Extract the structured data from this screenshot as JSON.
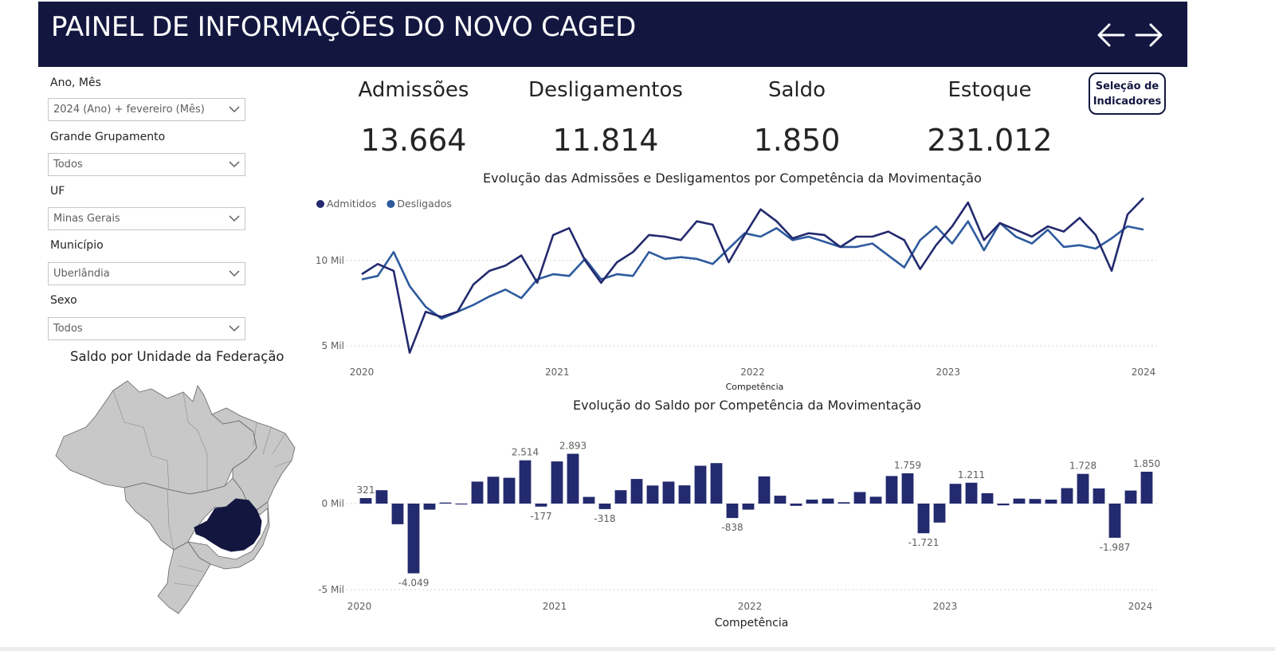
{
  "header": {
    "title": "PAINEL DE INFORMAÇÕES DO NOVO CAGED",
    "back_icon": "arrow-left-icon",
    "forward_icon": "arrow-right-icon",
    "background": "#131740"
  },
  "filters": [
    {
      "label": "Ano, Mês",
      "value": "2024 (Ano) + fevereiro (Mês)"
    },
    {
      "label": "Grande Grupamento",
      "value": "Todos"
    },
    {
      "label": "UF",
      "value": "Minas Gerais"
    },
    {
      "label": "Município",
      "value": "Uberlândia"
    },
    {
      "label": "Sexo",
      "value": "Todos"
    }
  ],
  "kpis": [
    {
      "title": "Admissões",
      "value": "13.664"
    },
    {
      "title": "Desligamentos",
      "value": "11.814"
    },
    {
      "title": "Saldo",
      "value": "1.850"
    },
    {
      "title": "Estoque",
      "value": "231.012"
    }
  ],
  "indicator_button": {
    "line1": "Seleção de",
    "line2": "Indicadores"
  },
  "map": {
    "title": "Saldo por Unidade da Federação",
    "highlighted_state": "Minas Gerais",
    "highlight_color": "#131740",
    "base_color": "#c8c8c8"
  },
  "chart_data": [
    {
      "type": "line",
      "title": "Evolução das Admissões e Desligamentos por Competência da Movimentação",
      "xlabel": "Competência",
      "ylabel": "",
      "x_ticks": [
        "2020",
        "2021",
        "2022",
        "2023",
        "2024"
      ],
      "y_ticks": [
        {
          "value": 5000,
          "label": "5 Mil"
        },
        {
          "value": 10000,
          "label": "10 Mil"
        }
      ],
      "ylim": [
        4400,
        13500
      ],
      "legend": "top-left",
      "x": [
        "2020-01",
        "2020-02",
        "2020-03",
        "2020-04",
        "2020-05",
        "2020-06",
        "2020-07",
        "2020-08",
        "2020-09",
        "2020-10",
        "2020-11",
        "2020-12",
        "2021-01",
        "2021-02",
        "2021-03",
        "2021-04",
        "2021-05",
        "2021-06",
        "2021-07",
        "2021-08",
        "2021-09",
        "2021-10",
        "2021-11",
        "2021-12",
        "2022-01",
        "2022-02",
        "2022-03",
        "2022-04",
        "2022-05",
        "2022-06",
        "2022-07",
        "2022-08",
        "2022-09",
        "2022-10",
        "2022-11",
        "2022-12",
        "2023-01",
        "2023-02",
        "2023-03",
        "2023-04",
        "2023-05",
        "2023-06",
        "2023-07",
        "2023-08",
        "2023-09",
        "2023-10",
        "2023-11",
        "2023-12",
        "2024-01",
        "2024-02"
      ],
      "series": [
        {
          "name": "Admitidos",
          "color": "#232a6e",
          "values": [
            9200,
            9800,
            9400,
            4600,
            7000,
            6700,
            7000,
            8600,
            9400,
            9700,
            10300,
            8700,
            11500,
            11900,
            10000,
            8700,
            9900,
            10500,
            11500,
            11400,
            11200,
            12300,
            12100,
            9900,
            11500,
            13000,
            12300,
            11300,
            11600,
            11500,
            10800,
            11400,
            11400,
            11700,
            11200,
            9500,
            10900,
            12000,
            13400,
            11200,
            12200,
            11800,
            11400,
            12000,
            11700,
            12500,
            11500,
            9400,
            12700,
            13664
          ]
        },
        {
          "name": "Desligados",
          "color": "#2e5a9e",
          "values": [
            8900,
            9100,
            10500,
            8500,
            7300,
            6600,
            7000,
            7400,
            7900,
            8300,
            7800,
            8900,
            9200,
            9100,
            10100,
            8900,
            9200,
            9100,
            10500,
            10100,
            10200,
            10100,
            9800,
            10700,
            11600,
            11400,
            11900,
            11200,
            11400,
            11100,
            10800,
            10800,
            11000,
            10300,
            9600,
            11200,
            12000,
            11000,
            12300,
            10600,
            12200,
            11400,
            11000,
            11800,
            10800,
            10900,
            10700,
            11300,
            12000,
            11814
          ]
        }
      ]
    },
    {
      "type": "bar",
      "title": "Evolução do Saldo por Competência da Movimentação",
      "xlabel": "Competência",
      "ylabel": "",
      "x_ticks": [
        "2020",
        "2021",
        "2022",
        "2023",
        "2024"
      ],
      "y_ticks": [
        {
          "value": -5000,
          "label": "-5 Mil"
        },
        {
          "value": 0,
          "label": "0 Mil"
        }
      ],
      "ylim": [
        -5000,
        3500
      ],
      "color": "#232a6e",
      "x": [
        "2020-01",
        "2020-02",
        "2020-03",
        "2020-04",
        "2020-05",
        "2020-06",
        "2020-07",
        "2020-08",
        "2020-09",
        "2020-10",
        "2020-11",
        "2020-12",
        "2021-01",
        "2021-02",
        "2021-03",
        "2021-04",
        "2021-05",
        "2021-06",
        "2021-07",
        "2021-08",
        "2021-09",
        "2021-10",
        "2021-11",
        "2021-12",
        "2022-01",
        "2022-02",
        "2022-03",
        "2022-04",
        "2022-05",
        "2022-06",
        "2022-07",
        "2022-08",
        "2022-09",
        "2022-10",
        "2022-11",
        "2022-12",
        "2023-01",
        "2023-02",
        "2023-03",
        "2023-04",
        "2023-05",
        "2023-06",
        "2023-07",
        "2023-08",
        "2023-09",
        "2023-10",
        "2023-11",
        "2023-12",
        "2024-01",
        "2024-02"
      ],
      "values": [
        321,
        780,
        -1200,
        -4049,
        -350,
        60,
        -50,
        1280,
        1560,
        1500,
        2514,
        -177,
        2450,
        2893,
        390,
        -318,
        780,
        1430,
        1050,
        1280,
        1060,
        2200,
        2350,
        -838,
        -350,
        1580,
        460,
        -130,
        230,
        290,
        80,
        670,
        400,
        1600,
        1759,
        -1721,
        -1100,
        1150,
        1211,
        600,
        -100,
        290,
        270,
        230,
        900,
        1728,
        880,
        -1987,
        760,
        1850
      ],
      "data_labels": [
        {
          "index": 0,
          "text": "321",
          "pos": "above"
        },
        {
          "index": 3,
          "text": "-4.049",
          "pos": "below"
        },
        {
          "index": 10,
          "text": "2.514",
          "pos": "above"
        },
        {
          "index": 11,
          "text": "-177",
          "pos": "below"
        },
        {
          "index": 13,
          "text": "2.893",
          "pos": "above"
        },
        {
          "index": 15,
          "text": "-318",
          "pos": "below"
        },
        {
          "index": 23,
          "text": "-838",
          "pos": "below"
        },
        {
          "index": 34,
          "text": "1.759",
          "pos": "above"
        },
        {
          "index": 35,
          "text": "-1.721",
          "pos": "below"
        },
        {
          "index": 38,
          "text": "1.211",
          "pos": "above"
        },
        {
          "index": 45,
          "text": "1.728",
          "pos": "above"
        },
        {
          "index": 47,
          "text": "-1.987",
          "pos": "below"
        },
        {
          "index": 49,
          "text": "1.850",
          "pos": "above"
        }
      ]
    }
  ]
}
